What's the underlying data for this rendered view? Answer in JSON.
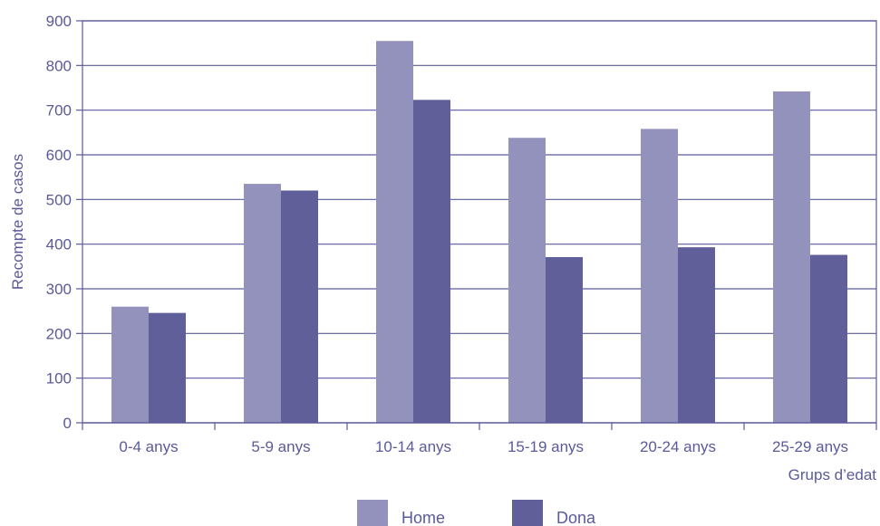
{
  "chart_data": {
    "type": "bar",
    "categories": [
      "0-4 anys",
      "5-9 anys",
      "10-14 anys",
      "15-19 anys",
      "20-24 anys",
      "25-29 anys"
    ],
    "series": [
      {
        "name": "Home",
        "values": [
          260,
          535,
          855,
          638,
          658,
          742
        ],
        "color": "#9392bd"
      },
      {
        "name": "Dona",
        "values": [
          246,
          520,
          723,
          371,
          393,
          376
        ],
        "color": "#615f99"
      }
    ],
    "xlabel": "Grups d’edat",
    "ylabel": "Recompte de casos",
    "ylim": [
      0,
      900
    ],
    "yticks": [
      0,
      100,
      200,
      300,
      400,
      500,
      600,
      700,
      800,
      900
    ],
    "grid": true,
    "legend_position": "bottom-center",
    "axis_color": "#5a5a9a",
    "grid_color": "#5a5a9a"
  }
}
